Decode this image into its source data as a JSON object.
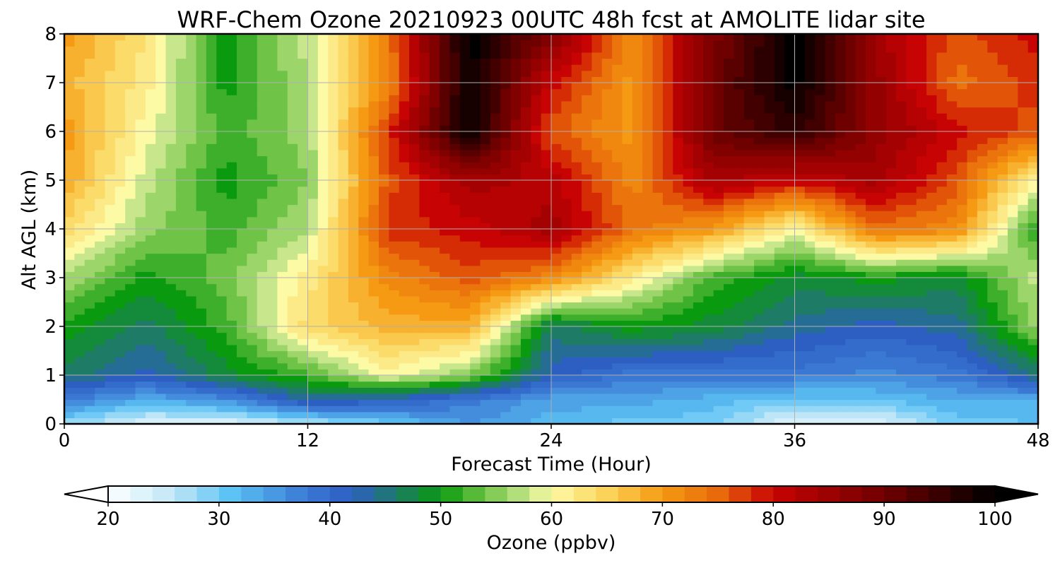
{
  "chart_data": {
    "type": "heatmap",
    "title": "WRF-Chem Ozone  20210923 00UTC 48h fcst at AMOLITE lidar site",
    "xlabel": "Forecast Time (Hour)",
    "ylabel": "Alt AGL (km)",
    "xlim": [
      0,
      48
    ],
    "ylim": [
      0,
      8
    ],
    "x_ticks": [
      0,
      12,
      24,
      36,
      48
    ],
    "y_ticks": [
      0,
      1,
      2,
      3,
      4,
      5,
      6,
      7,
      8
    ],
    "grid": true,
    "x": [
      0,
      4,
      8,
      12,
      16,
      20,
      24,
      28,
      32,
      36,
      40,
      44,
      48
    ],
    "y": [
      0,
      0.5,
      1,
      2,
      3,
      4,
      5,
      6,
      7,
      8
    ],
    "z": [
      [
        28,
        23,
        23,
        26,
        30,
        35,
        32,
        30,
        30,
        22,
        23,
        30,
        31
      ],
      [
        38,
        33,
        36,
        44,
        42,
        38,
        34,
        34,
        32,
        30,
        31,
        33,
        33
      ],
      [
        46,
        42,
        48,
        52,
        60,
        55,
        42,
        38,
        38,
        38,
        36,
        38,
        45
      ],
      [
        50,
        46,
        52,
        64,
        68,
        68,
        46,
        50,
        48,
        44,
        42,
        44,
        56
      ],
      [
        57,
        50,
        54,
        62,
        72,
        76,
        72,
        62,
        52,
        48,
        50,
        48,
        58
      ],
      [
        64,
        56,
        52,
        57,
        78,
        80,
        84,
        74,
        70,
        60,
        74,
        72,
        50
      ],
      [
        69,
        58,
        50,
        55,
        76,
        84,
        82,
        72,
        84,
        80,
        84,
        76,
        60
      ],
      [
        70,
        60,
        52,
        56,
        78,
        100,
        76,
        70,
        90,
        96,
        86,
        80,
        76
      ],
      [
        68,
        62,
        50,
        57,
        72,
        100,
        80,
        70,
        90,
        100,
        86,
        74,
        78
      ],
      [
        70,
        63,
        50,
        58,
        74,
        100,
        88,
        72,
        88,
        100,
        84,
        76,
        80
      ]
    ],
    "colorbar": {
      "label": "Ozone  (ppbv)",
      "min": 20,
      "max": 100,
      "ticks": [
        20,
        30,
        40,
        50,
        60,
        70,
        80,
        90,
        100
      ],
      "extend": "both",
      "stops": [
        {
          "v": 20,
          "c": "#ffffff"
        },
        {
          "v": 26,
          "c": "#bfe6f7"
        },
        {
          "v": 31,
          "c": "#5cc3f4"
        },
        {
          "v": 38,
          "c": "#3a78d4"
        },
        {
          "v": 42,
          "c": "#2d5fc2"
        },
        {
          "v": 46,
          "c": "#1d7b66"
        },
        {
          "v": 50,
          "c": "#0a9a0f"
        },
        {
          "v": 54,
          "c": "#6fc346"
        },
        {
          "v": 58,
          "c": "#c8e78c"
        },
        {
          "v": 60,
          "c": "#fdfaa6"
        },
        {
          "v": 65,
          "c": "#fbd35a"
        },
        {
          "v": 70,
          "c": "#f59a12"
        },
        {
          "v": 75,
          "c": "#e86a0b"
        },
        {
          "v": 80,
          "c": "#c80303"
        },
        {
          "v": 90,
          "c": "#6f0000"
        },
        {
          "v": 100,
          "c": "#000000"
        }
      ]
    }
  }
}
